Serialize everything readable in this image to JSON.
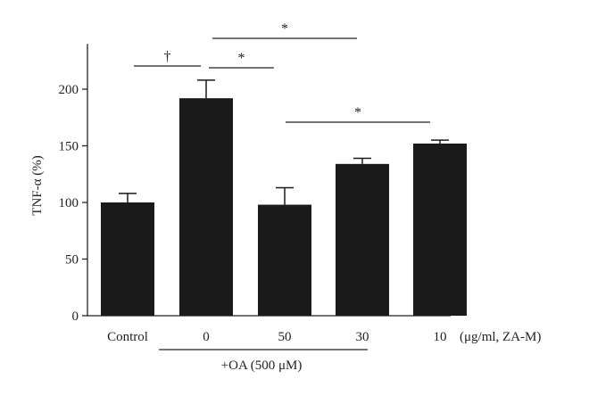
{
  "chart_data": {
    "type": "bar",
    "ylabel": "TNF-α (%)",
    "xlabel": "",
    "categories": [
      "Control",
      "0",
      "50",
      "30",
      "10"
    ],
    "values": [
      100,
      192,
      98,
      134,
      152
    ],
    "errors": [
      8,
      16,
      15,
      5,
      3
    ],
    "ylim": [
      0,
      250
    ],
    "yticks": [
      0,
      50,
      100,
      150,
      200
    ],
    "x_unit_label": "(μg/ml, ZA-M)",
    "group_label": "+OA (500 μM)",
    "bar_color": "#1a1a1a",
    "significance": [
      {
        "from": 0,
        "to": 1,
        "label": "†"
      },
      {
        "from": 1,
        "to": 2,
        "label": "*"
      },
      {
        "from": 1,
        "to": 3,
        "label": "*"
      },
      {
        "from": 2,
        "to": 4,
        "label": "*"
      }
    ],
    "grid": false,
    "legend": "none"
  }
}
